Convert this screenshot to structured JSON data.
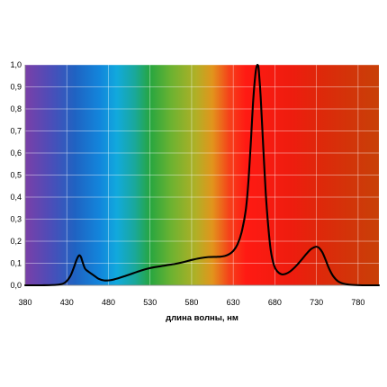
{
  "chart_data": {
    "type": "line",
    "title": "",
    "xlabel": "длина волны, нм",
    "ylabel": "",
    "xlim": [
      380,
      805
    ],
    "ylim": [
      0,
      1
    ],
    "xticks": [
      380,
      430,
      480,
      530,
      580,
      630,
      680,
      730,
      780
    ],
    "yticks": [
      "0,0",
      "0,1",
      "0,2",
      "0,3",
      "0,4",
      "0,5",
      "0,6",
      "0,7",
      "0,8",
      "0,9",
      "1,0"
    ],
    "grid": true,
    "legend": "none",
    "line_color": "#000000",
    "background_gradient": [
      {
        "x": 380,
        "color": "#7a3fa8"
      },
      {
        "x": 410,
        "color": "#4d4db8"
      },
      {
        "x": 440,
        "color": "#1f63c2"
      },
      {
        "x": 470,
        "color": "#1286dc"
      },
      {
        "x": 490,
        "color": "#11a9dd"
      },
      {
        "x": 512,
        "color": "#1aa89a"
      },
      {
        "x": 530,
        "color": "#26a640"
      },
      {
        "x": 555,
        "color": "#6bb231"
      },
      {
        "x": 585,
        "color": "#b0b026"
      },
      {
        "x": 605,
        "color": "#e2941c"
      },
      {
        "x": 625,
        "color": "#f5421a"
      },
      {
        "x": 645,
        "color": "#ff1a13"
      },
      {
        "x": 700,
        "color": "#ee1c0e"
      },
      {
        "x": 740,
        "color": "#dc2a0a"
      },
      {
        "x": 805,
        "color": "#c84008"
      }
    ],
    "series": [
      {
        "x": [
          380,
          400,
          420,
          428,
          434,
          438,
          441,
          443,
          445,
          447,
          449,
          452,
          456,
          462,
          468,
          475,
          482,
          490,
          500,
          510,
          520,
          530,
          540,
          550,
          560,
          570,
          580,
          590,
          600,
          610,
          615,
          620,
          625,
          630,
          635,
          640,
          645,
          648,
          651,
          654,
          657,
          659,
          660,
          661,
          663,
          666,
          669,
          672,
          675,
          679,
          683,
          688,
          693,
          698,
          703,
          708,
          713,
          718,
          723,
          727,
          730,
          733,
          737,
          741,
          745,
          750,
          756,
          763,
          772,
          785,
          800,
          805
        ],
        "y": [
          0.0,
          0.0,
          0.003,
          0.013,
          0.04,
          0.076,
          0.108,
          0.126,
          0.136,
          0.128,
          0.105,
          0.075,
          0.062,
          0.046,
          0.03,
          0.022,
          0.023,
          0.03,
          0.042,
          0.055,
          0.068,
          0.078,
          0.085,
          0.091,
          0.097,
          0.105,
          0.115,
          0.123,
          0.128,
          0.129,
          0.13,
          0.133,
          0.141,
          0.156,
          0.185,
          0.24,
          0.34,
          0.46,
          0.64,
          0.84,
          0.97,
          1.0,
          0.995,
          0.96,
          0.85,
          0.63,
          0.42,
          0.27,
          0.16,
          0.09,
          0.063,
          0.05,
          0.052,
          0.062,
          0.078,
          0.098,
          0.12,
          0.143,
          0.163,
          0.172,
          0.175,
          0.17,
          0.15,
          0.115,
          0.077,
          0.042,
          0.018,
          0.007,
          0.002,
          0.0,
          0.0,
          0.0
        ]
      }
    ]
  }
}
